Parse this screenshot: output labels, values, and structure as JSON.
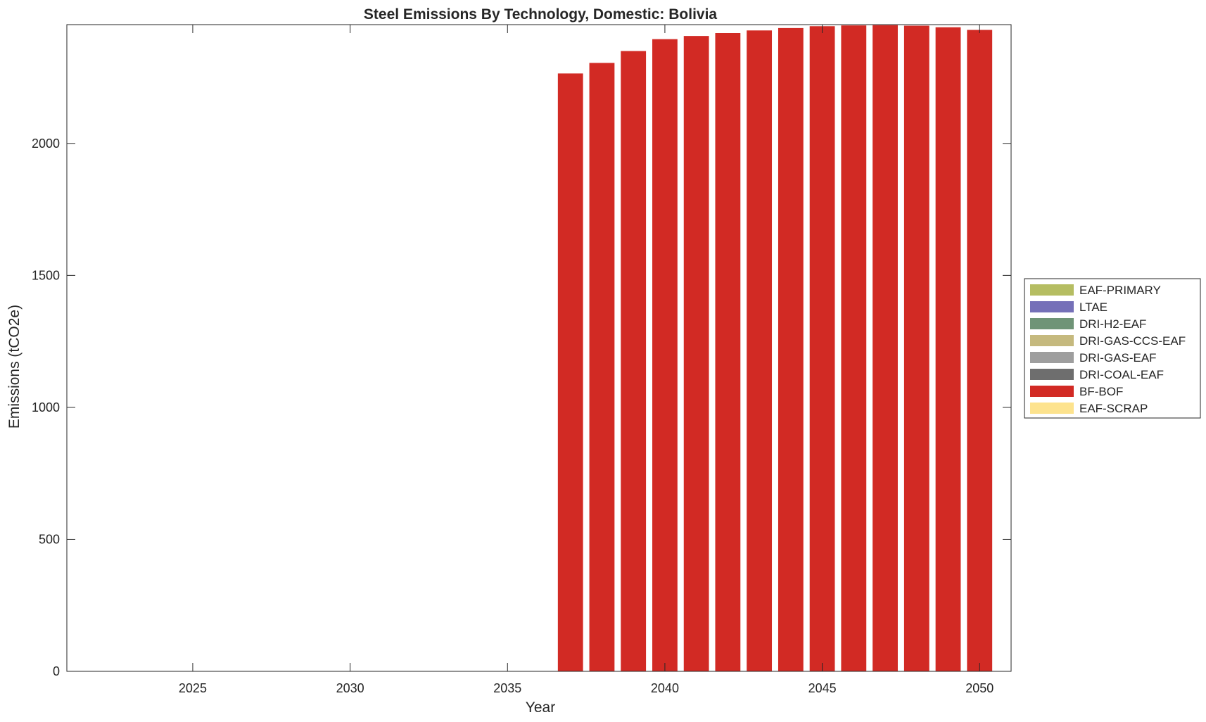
{
  "chart_data": {
    "type": "bar",
    "stacked": true,
    "title": "Steel Emissions By Technology, Domestic: Bolivia",
    "xlabel": "Year",
    "ylabel": "Emissions (tCO2e)",
    "xlim": [
      2021,
      2051
    ],
    "ylim": [
      0,
      2450
    ],
    "xticks": [
      2025,
      2030,
      2035,
      2040,
      2045,
      2050
    ],
    "yticks": [
      0,
      500,
      1000,
      1500,
      2000
    ],
    "grid": false,
    "legend_position": "right",
    "x": [
      2037,
      2038,
      2039,
      2040,
      2041,
      2042,
      2043,
      2044,
      2045,
      2046,
      2047,
      2048,
      2049,
      2050
    ],
    "series": [
      {
        "name": "EAF-PRIMARY",
        "color": "#b5bd62",
        "values": [
          0,
          0,
          0,
          0,
          0,
          0,
          0,
          0,
          0,
          0,
          0,
          0,
          0,
          0
        ]
      },
      {
        "name": "LTAE",
        "color": "#7570b8",
        "values": [
          0,
          0,
          0,
          0,
          0,
          0,
          0,
          0,
          0,
          0,
          0,
          0,
          0,
          0
        ]
      },
      {
        "name": "DRI-H2-EAF",
        "color": "#6f9477",
        "values": [
          0,
          0,
          0,
          0,
          0,
          0,
          0,
          0,
          0,
          0,
          0,
          0,
          0,
          0
        ]
      },
      {
        "name": "DRI-GAS-CCS-EAF",
        "color": "#c5b97e",
        "values": [
          0,
          0,
          0,
          0,
          0,
          0,
          0,
          0,
          0,
          0,
          0,
          0,
          0,
          0
        ]
      },
      {
        "name": "DRI-GAS-EAF",
        "color": "#9e9e9e",
        "values": [
          0,
          0,
          0,
          0,
          0,
          0,
          0,
          0,
          0,
          0,
          0,
          0,
          0,
          0
        ]
      },
      {
        "name": "DRI-COAL-EAF",
        "color": "#6e6e6e",
        "values": [
          0,
          0,
          0,
          0,
          0,
          0,
          0,
          0,
          0,
          0,
          0,
          0,
          0,
          0
        ]
      },
      {
        "name": "BF-BOF",
        "color": "#d22a24",
        "values": [
          2265,
          2305,
          2350,
          2395,
          2407,
          2418,
          2428,
          2437,
          2444,
          2447,
          2448,
          2446,
          2440,
          2430
        ]
      },
      {
        "name": "EAF-SCRAP",
        "color": "#fde38e",
        "values": [
          0,
          0,
          0,
          0,
          0,
          0,
          0,
          0,
          0,
          0,
          0,
          0,
          0,
          0
        ]
      }
    ]
  }
}
